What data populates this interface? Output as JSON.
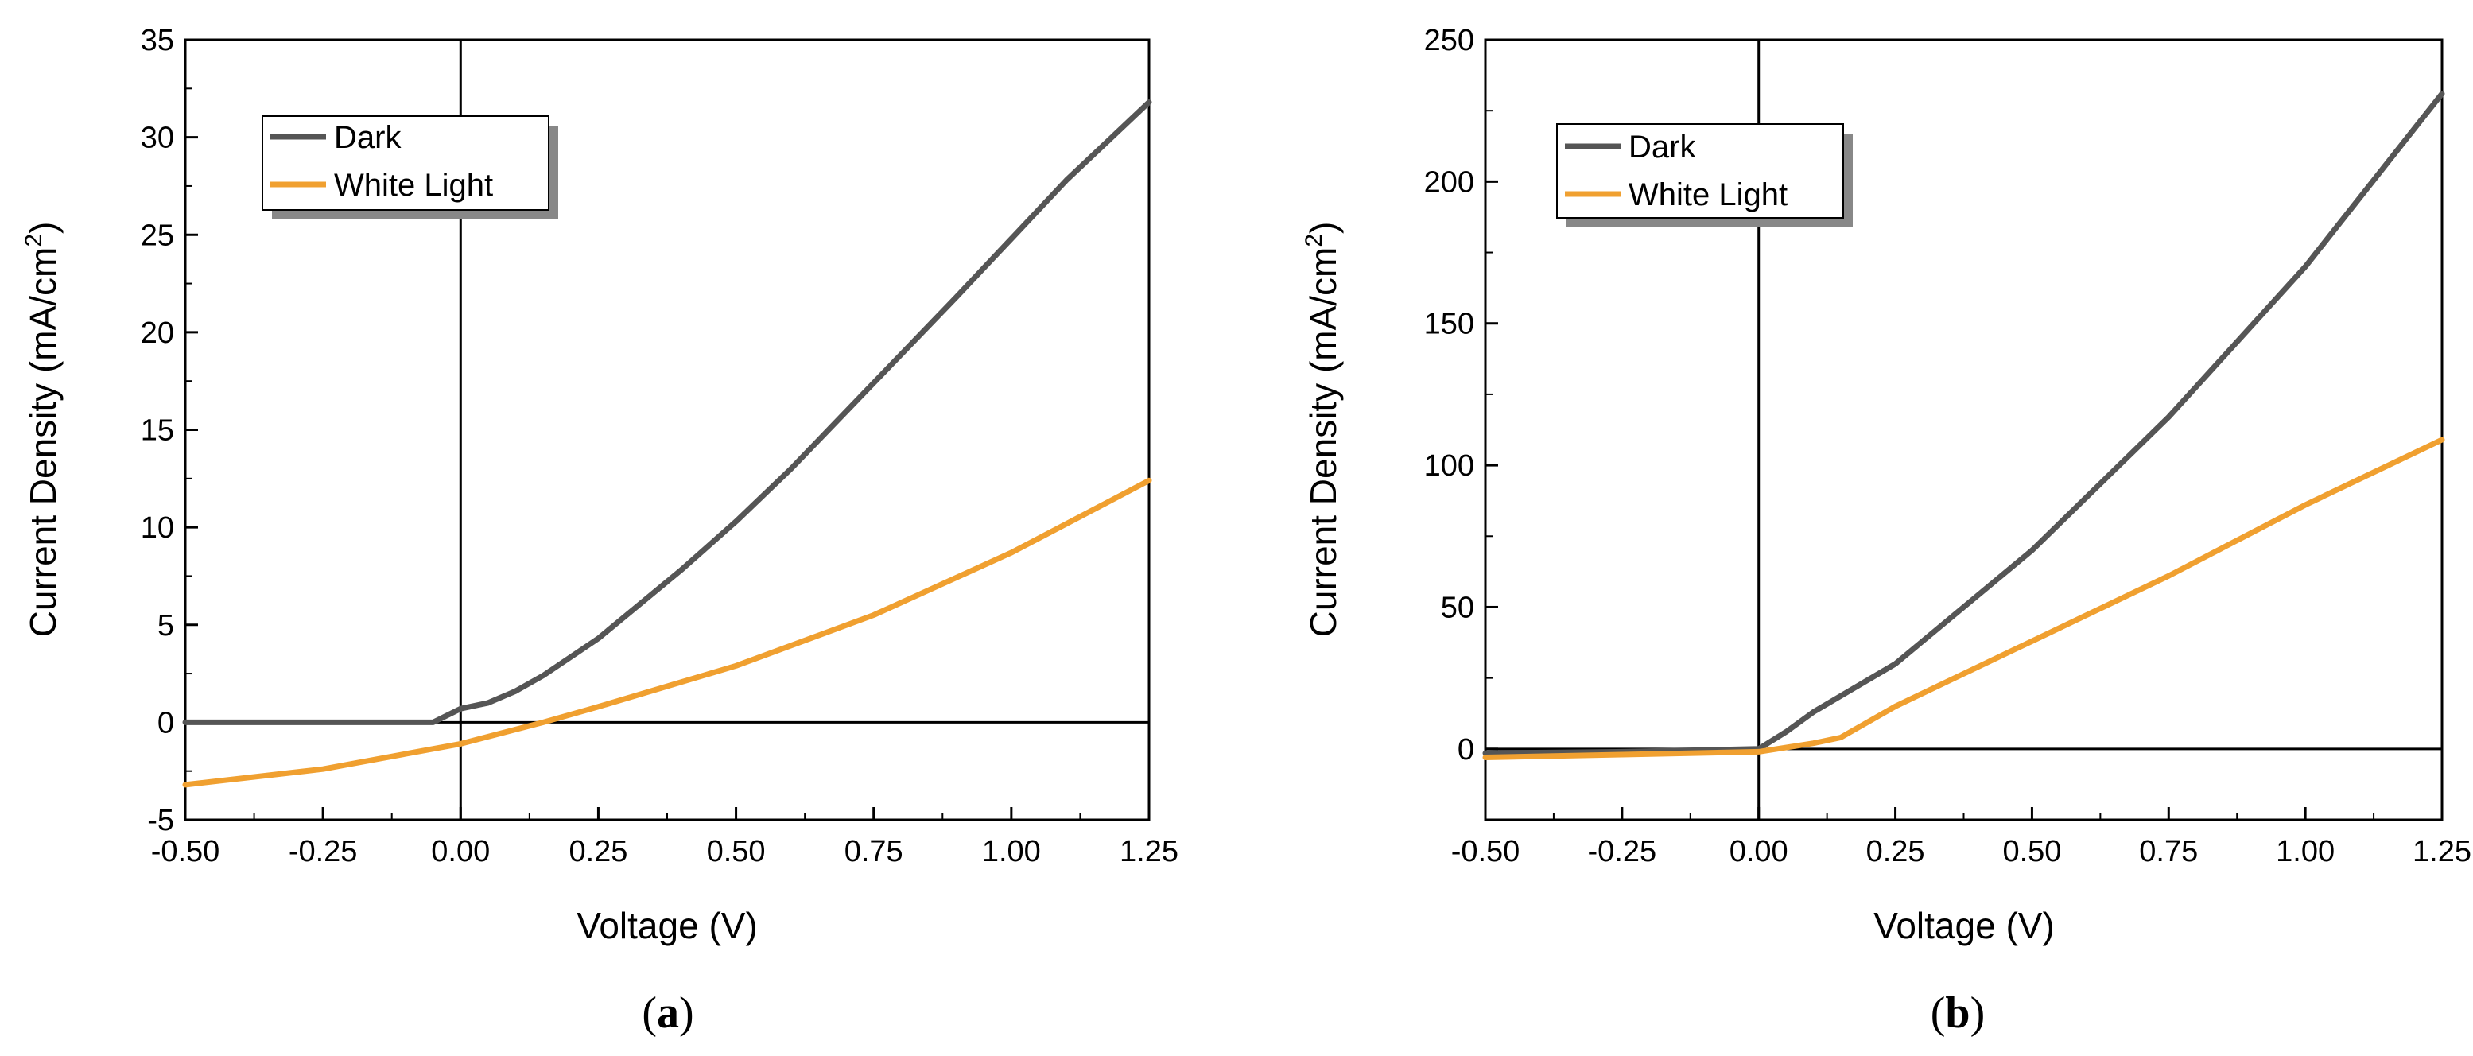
{
  "chart_data": [
    {
      "panel": "(a)",
      "panel_open": "(",
      "panel_letter": "a",
      "panel_close": ")",
      "type": "line",
      "xlabel": "Voltage (V)",
      "ylabel": "Current Density (mA/cm",
      "ylabel_sup": "2",
      "ylabel_end": ")",
      "xlim": [
        -0.5,
        1.25
      ],
      "ylim": [
        -5,
        35
      ],
      "xticks": [
        -0.5,
        -0.25,
        0.0,
        0.25,
        0.5,
        0.75,
        1.0,
        1.25
      ],
      "xtick_labels": [
        "-0.50",
        "-0.25",
        "0.00",
        "0.25",
        "0.50",
        "0.75",
        "1.00",
        "1.25"
      ],
      "yticks": [
        -5,
        0,
        5,
        10,
        15,
        20,
        25,
        30,
        35
      ],
      "ytick_labels": [
        "-5",
        "0",
        "5",
        "10",
        "15",
        "20",
        "25",
        "30",
        "35"
      ],
      "legend_position": "top-left",
      "series": [
        {
          "name": "Dark",
          "color": "#555555",
          "x": [
            -0.5,
            -0.25,
            -0.05,
            0.0,
            0.05,
            0.1,
            0.15,
            0.25,
            0.4,
            0.5,
            0.6,
            0.75,
            0.9,
            1.0,
            1.1,
            1.25
          ],
          "y": [
            0.0,
            0.0,
            0.0,
            0.7,
            1.0,
            1.6,
            2.4,
            4.3,
            7.8,
            10.3,
            13.0,
            17.4,
            21.8,
            24.8,
            27.8,
            31.8
          ]
        },
        {
          "name": "White Light",
          "color": "#F0A030",
          "x": [
            -0.5,
            -0.25,
            0.0,
            0.15,
            0.25,
            0.5,
            0.75,
            1.0,
            1.25
          ],
          "y": [
            -3.2,
            -2.4,
            -1.1,
            0.0,
            0.8,
            2.9,
            5.5,
            8.7,
            12.4
          ]
        }
      ]
    },
    {
      "panel": "(b)",
      "panel_open": "(",
      "panel_letter": "b",
      "panel_close": ")",
      "type": "line",
      "xlabel": "Voltage (V)",
      "ylabel": "Current Density (mA/cm",
      "ylabel_sup": "2",
      "ylabel_end": ")",
      "xlim": [
        -0.5,
        1.25
      ],
      "ylim": [
        -25,
        250
      ],
      "xticks": [
        -0.5,
        -0.25,
        0.0,
        0.25,
        0.5,
        0.75,
        1.0,
        1.25
      ],
      "xtick_labels": [
        "-0.50",
        "-0.25",
        "0.00",
        "0.25",
        "0.50",
        "0.75",
        "1.00",
        "1.25"
      ],
      "yticks": [
        0,
        50,
        100,
        150,
        200,
        250
      ],
      "ytick_labels": [
        "0",
        "50",
        "100",
        "150",
        "200",
        "250"
      ],
      "legend_position": "top-left",
      "series": [
        {
          "name": "Dark",
          "color": "#555555",
          "x": [
            -0.5,
            -0.25,
            0.0,
            0.05,
            0.1,
            0.25,
            0.5,
            0.75,
            1.0,
            1.25
          ],
          "y": [
            -1.5,
            -1.0,
            0.0,
            6.0,
            13.0,
            30.0,
            70.0,
            117.0,
            170.0,
            231.0
          ]
        },
        {
          "name": "White Light",
          "color": "#F0A030",
          "x": [
            -0.5,
            -0.25,
            0.0,
            0.1,
            0.15,
            0.25,
            0.5,
            0.75,
            1.0,
            1.25
          ],
          "y": [
            -3.0,
            -2.0,
            -1.0,
            2.0,
            4.0,
            15.0,
            38.0,
            61.0,
            86.0,
            109.0
          ]
        }
      ]
    }
  ]
}
